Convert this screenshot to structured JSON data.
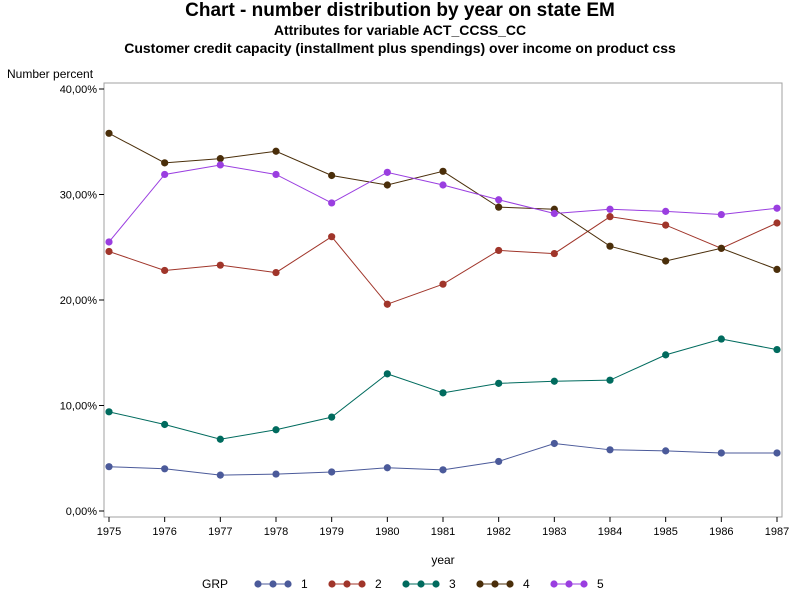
{
  "title": "Chart - number distribution by year on state EM",
  "subtitle1": "Attributes for variable ACT_CCSS_CC",
  "subtitle2": "Customer credit capacity (installment plus spendings) over income on product css",
  "chart_data": {
    "type": "line",
    "xlabel": "year",
    "ylabel": "Number percent",
    "ylim": [
      0,
      40
    ],
    "yticks": [
      "0,00%",
      "10,00%",
      "20,00%",
      "30,00%",
      "40,00%"
    ],
    "x": [
      "1975",
      "1976",
      "1977",
      "1978",
      "1979",
      "1980",
      "1981",
      "1982",
      "1983",
      "1984",
      "1985",
      "1986",
      "1987"
    ],
    "grid": false,
    "legend": {
      "title": "GRP",
      "position": "bottom"
    },
    "series": [
      {
        "name": "1",
        "color": "#4B5A9A",
        "values": [
          4.2,
          4.0,
          3.4,
          3.5,
          3.7,
          4.1,
          3.9,
          4.7,
          6.4,
          5.8,
          5.7,
          5.5,
          5.5
        ]
      },
      {
        "name": "2",
        "color": "#A0352A",
        "values": [
          24.6,
          22.8,
          23.3,
          22.6,
          26.0,
          19.6,
          21.5,
          24.7,
          24.4,
          27.9,
          27.1,
          24.9,
          27.3
        ]
      },
      {
        "name": "3",
        "color": "#006B5E",
        "values": [
          9.4,
          8.2,
          6.8,
          7.7,
          8.9,
          13.0,
          11.2,
          12.1,
          12.3,
          12.4,
          14.8,
          16.3,
          15.3
        ]
      },
      {
        "name": "4",
        "color": "#4A2E0A",
        "values": [
          35.8,
          33.0,
          33.4,
          34.1,
          31.8,
          30.9,
          32.2,
          28.8,
          28.6,
          25.1,
          23.7,
          24.9,
          22.9
        ]
      },
      {
        "name": "5",
        "color": "#9A3EE0",
        "values": [
          25.5,
          31.9,
          32.8,
          31.9,
          29.2,
          32.1,
          30.9,
          29.5,
          28.2,
          28.6,
          28.4,
          28.1,
          28.7
        ]
      }
    ]
  }
}
